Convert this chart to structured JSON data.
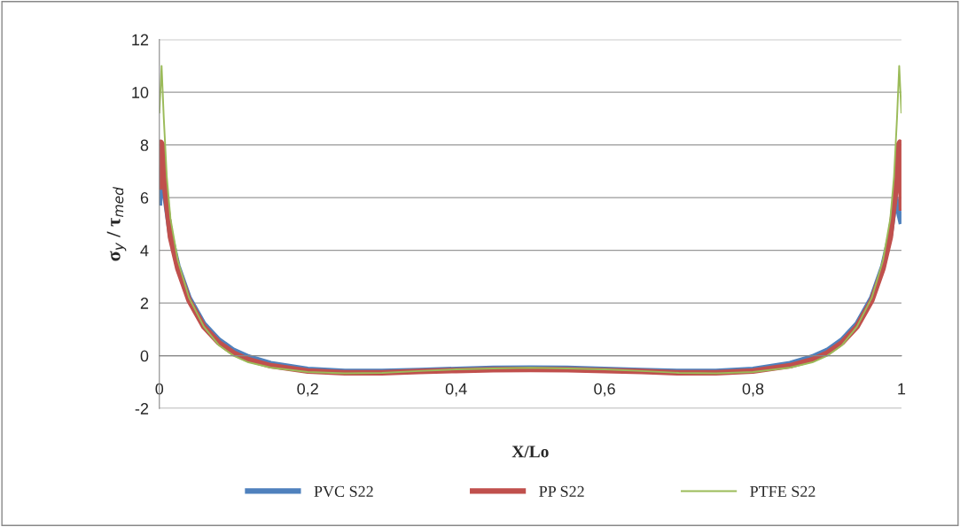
{
  "chart_data": {
    "type": "line",
    "xlabel": "X/Lo",
    "ylabel": "σ$_{y}$ / τ$_{med}$",
    "xlim": [
      0,
      1
    ],
    "ylim": [
      -2,
      12
    ],
    "xticks": [
      0,
      {
        "value": 0.2,
        "label": "0,2"
      },
      {
        "value": 0.4,
        "label": "0,4"
      },
      {
        "value": 0.6,
        "label": "0,6"
      },
      {
        "value": 0.8,
        "label": "0,8"
      },
      1
    ],
    "yticks": [
      {
        "value": -2,
        "label": "-2"
      },
      0,
      2,
      4,
      6,
      8,
      10,
      12
    ],
    "grid": "y",
    "legend": "bottom",
    "marker": "none",
    "line_style": "solid",
    "series": [
      {
        "name": "PVC S22",
        "color": "#4f81bd",
        "x": [
          0,
          0.002,
          0.004,
          0.008,
          0.015,
          0.025,
          0.04,
          0.06,
          0.08,
          0.1,
          0.12,
          0.15,
          0.2,
          0.25,
          0.3,
          0.35,
          0.4,
          0.45,
          0.5,
          0.55,
          0.6,
          0.65,
          0.7,
          0.75,
          0.8,
          0.85,
          0.88,
          0.9,
          0.92,
          0.94,
          0.96,
          0.975,
          0.985,
          0.992,
          0.996,
          0.998,
          1
        ],
        "values": [
          5.7,
          6.8,
          7.3,
          6.0,
          4.6,
          3.4,
          2.2,
          1.2,
          0.6,
          0.2,
          -0.05,
          -0.3,
          -0.52,
          -0.6,
          -0.6,
          -0.56,
          -0.52,
          -0.48,
          -0.47,
          -0.48,
          -0.52,
          -0.56,
          -0.6,
          -0.6,
          -0.52,
          -0.3,
          -0.05,
          0.2,
          0.6,
          1.2,
          2.2,
          3.4,
          4.6,
          6.0,
          null,
          null,
          5.0
        ]
      },
      {
        "name": "PP S22",
        "color": "#c0504d",
        "x": [
          0,
          0.002,
          0.004,
          0.008,
          0.015,
          0.025,
          0.04,
          0.06,
          0.08,
          0.1,
          0.12,
          0.15,
          0.2,
          0.25,
          0.3,
          0.35,
          0.4,
          0.45,
          0.5,
          0.55,
          0.6,
          0.65,
          0.7,
          0.75,
          0.8,
          0.85,
          0.88,
          0.9,
          0.92,
          0.94,
          0.96,
          0.975,
          0.985,
          0.992,
          0.996,
          0.998,
          1
        ],
        "values": [
          6.3,
          8.1,
          8.0,
          6.2,
          4.5,
          3.3,
          2.1,
          1.1,
          0.5,
          0.1,
          -0.15,
          -0.38,
          -0.58,
          -0.65,
          -0.65,
          -0.6,
          -0.56,
          -0.53,
          -0.52,
          -0.53,
          -0.56,
          -0.6,
          -0.65,
          -0.65,
          -0.58,
          -0.38,
          -0.15,
          0.1,
          0.5,
          1.1,
          2.1,
          3.3,
          4.5,
          6.2,
          8.0,
          8.1,
          5.5
        ]
      },
      {
        "name": "PTFE S22",
        "color": "#9bbb59",
        "x": [
          0,
          0.003,
          0.006,
          0.01,
          0.015,
          0.025,
          0.04,
          0.06,
          0.08,
          0.1,
          0.12,
          0.15,
          0.2,
          0.25,
          0.3,
          0.35,
          0.4,
          0.45,
          0.5,
          0.55,
          0.6,
          0.65,
          0.7,
          0.75,
          0.8,
          0.85,
          0.88,
          0.9,
          0.92,
          0.94,
          0.96,
          0.975,
          0.985,
          0.99,
          0.994,
          0.997,
          1
        ],
        "values": [
          9.2,
          11.0,
          9.0,
          6.8,
          5.2,
          3.6,
          2.2,
          1.1,
          0.4,
          0.0,
          -0.25,
          -0.45,
          -0.62,
          -0.67,
          -0.65,
          -0.58,
          -0.52,
          -0.48,
          -0.46,
          -0.48,
          -0.52,
          -0.58,
          -0.65,
          -0.67,
          -0.62,
          -0.45,
          -0.25,
          0.0,
          0.4,
          1.1,
          2.2,
          3.6,
          5.2,
          6.8,
          9.0,
          11.0,
          9.2
        ]
      }
    ]
  }
}
